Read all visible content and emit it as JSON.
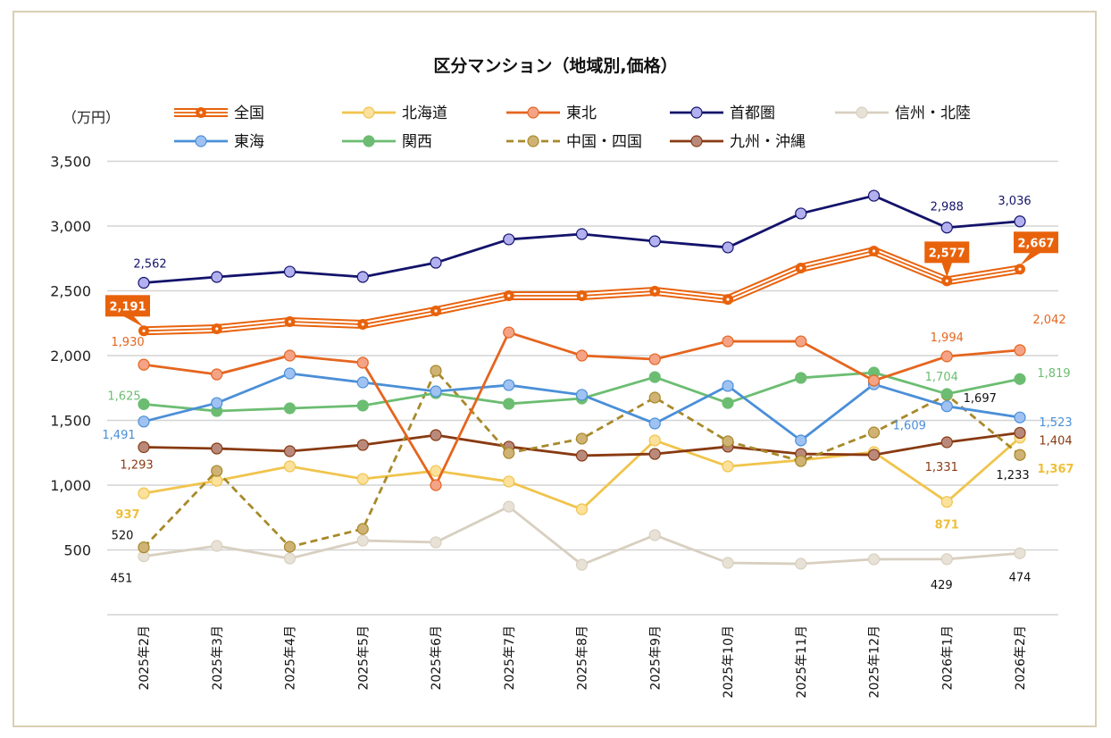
{
  "chart_data": {
    "type": "line",
    "title": "区分マンション（地域別,価格）",
    "ylabel": "（万円）",
    "ylim": [
      0,
      3500
    ],
    "yticks": [
      500,
      1000,
      1500,
      2000,
      2500,
      3000,
      3500
    ],
    "ytick_labels": [
      "500",
      "1,000",
      "1,500",
      "2,000",
      "2,500",
      "3,000",
      "3,500"
    ],
    "grid": true,
    "legend_position": "top",
    "categories": [
      "2025年2月",
      "2025年3月",
      "2025年4月",
      "2025年5月",
      "2025年6月",
      "2025年7月",
      "2025年8月",
      "2025年9月",
      "2025年10月",
      "2025年11月",
      "2025年12月",
      "2026年1月",
      "2026年2月"
    ],
    "series": [
      {
        "key": "zenkoku",
        "name": "全国",
        "color": "#e8620c",
        "marker": "#e8620c",
        "style": "double",
        "values": [
          2191,
          2207,
          2262,
          2241,
          2345,
          2462,
          2462,
          2497,
          2434,
          2676,
          2807,
          2577,
          2667
        ],
        "labels": {
          "0": "2,191",
          "11": "2,577",
          "12": "2,667"
        }
      },
      {
        "key": "hokkaido",
        "name": "北海道",
        "color": "#f0c44c",
        "marker": "#fbe19c",
        "style": "solid",
        "values": [
          937,
          1034,
          1145,
          1048,
          1110,
          1028,
          814,
          1345,
          1145,
          1193,
          1255,
          871,
          1367
        ],
        "labels": {
          "0": "937",
          "11": "871",
          "12": "1,367"
        }
      },
      {
        "key": "tohoku",
        "name": "東北",
        "color": "#e5651f",
        "marker": "#f4a386",
        "style": "solid",
        "values": [
          1930,
          1855,
          2000,
          1945,
          1000,
          2179,
          2000,
          1972,
          2110,
          2110,
          1807,
          1994,
          2042
        ],
        "labels": {
          "0": "1,930",
          "11": "1,994",
          "12": "2,042"
        }
      },
      {
        "key": "shutoken",
        "name": "首都圏",
        "color": "#13136b",
        "marker": "#b3b0f0",
        "style": "solid",
        "values": [
          2562,
          2607,
          2648,
          2607,
          2717,
          2897,
          2938,
          2883,
          2835,
          3097,
          3234,
          2988,
          3036
        ],
        "labels": {
          "0": "2,562",
          "11": "2,988",
          "12": "3,036"
        }
      },
      {
        "key": "shinshu",
        "name": "信州・北陸",
        "color": "#d8cfc0",
        "marker": "#e8e2d6",
        "style": "solid",
        "values": [
          451,
          531,
          434,
          572,
          559,
          834,
          386,
          614,
          400,
          393,
          428,
          429,
          474
        ],
        "labels": {
          "0": "451",
          "11": "429",
          "12": "474"
        }
      },
      {
        "key": "tokai",
        "name": "東海",
        "color": "#4a8fd8",
        "marker": "#a0c2f2",
        "style": "solid",
        "values": [
          1491,
          1634,
          1862,
          1793,
          1724,
          1772,
          1697,
          1476,
          1766,
          1345,
          1779,
          1609,
          1523
        ],
        "labels": {
          "0": "1,491",
          "11": "1,609",
          "12": "1,523"
        }
      },
      {
        "key": "kansai",
        "name": "関西",
        "color": "#6cbd72",
        "marker": "#6cbd72",
        "style": "solid",
        "values": [
          1625,
          1572,
          1593,
          1614,
          1710,
          1628,
          1669,
          1834,
          1634,
          1828,
          1869,
          1704,
          1819
        ],
        "labels": {
          "0": "1,625",
          "11": "1,704",
          "12": "1,819"
        }
      },
      {
        "key": "chugoku",
        "name": "中国・四国",
        "color": "#a8892a",
        "marker": "#cfb274",
        "style": "dashed",
        "values": [
          520,
          1110,
          524,
          662,
          1883,
          1248,
          1359,
          1676,
          1338,
          1186,
          1407,
          1697,
          1233
        ],
        "labels": {
          "0": "520",
          "11": "1,697",
          "12": "1,233"
        }
      },
      {
        "key": "kyushu",
        "name": "九州・沖縄",
        "color": "#883a12",
        "marker": "#b98a7c",
        "style": "solid",
        "values": [
          1293,
          1283,
          1262,
          1310,
          1386,
          1297,
          1228,
          1241,
          1297,
          1241,
          1234,
          1331,
          1404
        ],
        "labels": {
          "0": "1,293",
          "11": "1,331",
          "12": "1,404"
        }
      }
    ]
  }
}
